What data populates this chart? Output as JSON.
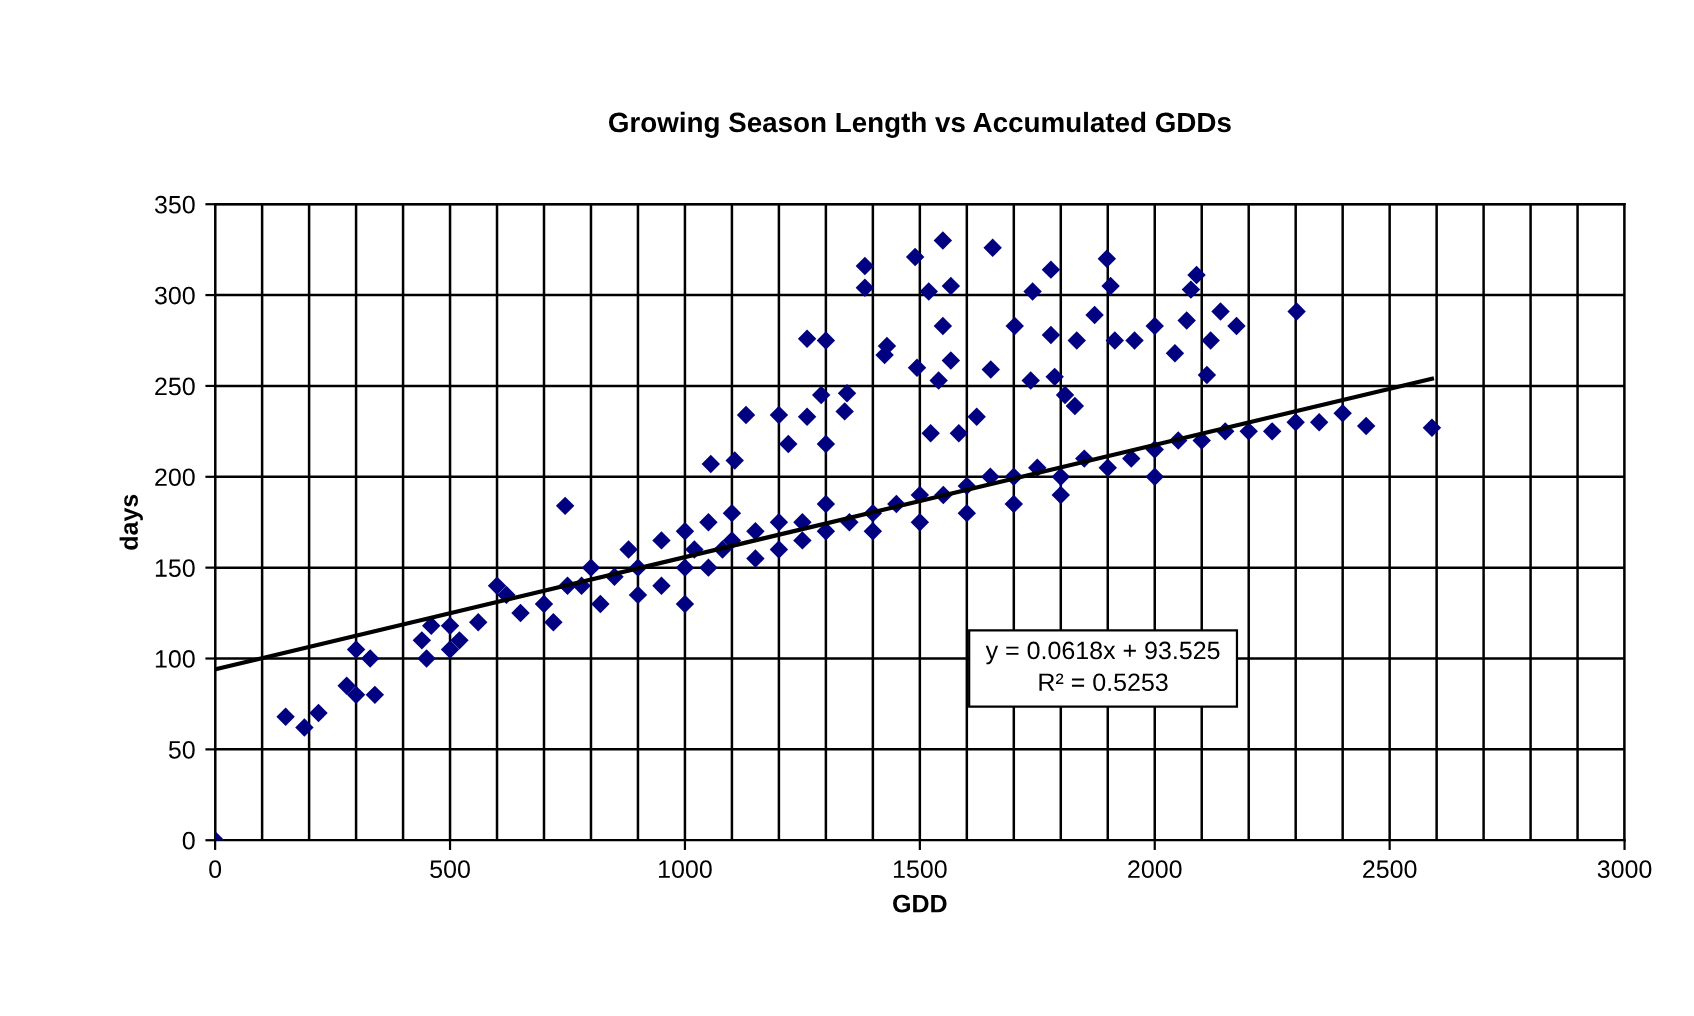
{
  "chart_data": {
    "type": "scatter",
    "title": "Growing Season Length vs Accumulated GDDs",
    "xlabel": "GDD",
    "ylabel": "days",
    "xlim": [
      0,
      3000
    ],
    "ylim": [
      0,
      350
    ],
    "xticks": [
      0,
      {
        "value": 100,
        "label": null
      },
      {
        "value": 200,
        "label": null
      },
      {
        "value": 300,
        "label": null
      },
      {
        "value": 400,
        "label": null
      },
      500,
      {
        "value": 600,
        "label": null
      },
      {
        "value": 700,
        "label": null
      },
      {
        "value": 800,
        "label": null
      },
      {
        "value": 900,
        "label": null
      },
      1000,
      {
        "value": 1100,
        "label": null
      },
      {
        "value": 1200,
        "label": null
      },
      {
        "value": 1300,
        "label": null
      },
      {
        "value": 1400,
        "label": null
      },
      1500,
      {
        "value": 1600,
        "label": null
      },
      {
        "value": 1700,
        "label": null
      },
      {
        "value": 1800,
        "label": null
      },
      {
        "value": 1900,
        "label": null
      },
      2000,
      {
        "value": 2100,
        "label": null
      },
      {
        "value": 2200,
        "label": null
      },
      {
        "value": 2300,
        "label": null
      },
      {
        "value": 2400,
        "label": null
      },
      2500,
      {
        "value": 2600,
        "label": null
      },
      {
        "value": 2700,
        "label": null
      },
      {
        "value": 2800,
        "label": null
      },
      {
        "value": 2900,
        "label": null
      },
      3000
    ],
    "yticks": [
      0,
      50,
      100,
      150,
      200,
      250,
      300,
      350
    ],
    "grid": true,
    "legend": false,
    "annotations": [
      "y = 0.0618x + 93.525",
      "R² = 0.5253"
    ],
    "series": [
      {
        "color": "#000080",
        "marker": "diamond",
        "x": [
          0,
          150,
          190,
          220,
          280,
          300,
          340,
          300,
          330,
          440,
          450,
          500,
          520,
          460,
          500,
          560,
          600,
          620,
          650,
          700,
          720,
          745,
          750,
          780,
          800,
          820,
          850,
          880,
          900,
          900,
          950,
          950,
          1000,
          1000,
          1000,
          1020,
          1050,
          1050,
          1080,
          1100,
          1100,
          1150,
          1150,
          1200,
          1200,
          1250,
          1250,
          1300,
          1300,
          1350,
          1400,
          1400,
          1450,
          1500,
          1500,
          1550,
          1600,
          1600,
          1650,
          1700,
          1700,
          1750,
          1800,
          1800,
          1850,
          1900,
          1950,
          2000,
          2000,
          2050,
          2100,
          2150,
          2200,
          2250,
          2300,
          2350,
          2400,
          2450,
          2590,
          1055,
          1106,
          1130,
          1200,
          1260,
          1220,
          1300,
          1290,
          1345,
          1340,
          1260,
          1300,
          1425,
          1430,
          1383,
          1383,
          1490,
          1549,
          1655,
          1519,
          1566,
          1779,
          1898,
          1906,
          2089,
          2077,
          2302,
          1740,
          1702,
          1549,
          1566,
          1494,
          1651,
          1540,
          1779,
          1834,
          1872,
          2000,
          1957,
          2043,
          2068,
          2140,
          2174,
          2119,
          2111,
          1915,
          1736,
          1787,
          1830,
          1809,
          1523,
          1621,
          1583
        ],
        "values": [
          0,
          68,
          62,
          70,
          85,
          80,
          80,
          105,
          100,
          110,
          100,
          105,
          110,
          118,
          118,
          120,
          140,
          135,
          125,
          130,
          120,
          184,
          140,
          140,
          150,
          130,
          145,
          160,
          150,
          135,
          140,
          165,
          150,
          130,
          170,
          160,
          175,
          150,
          160,
          180,
          165,
          170,
          155,
          175,
          160,
          175,
          165,
          185,
          170,
          175,
          180,
          170,
          185,
          190,
          175,
          190,
          195,
          180,
          200,
          200,
          185,
          205,
          200,
          190,
          210,
          205,
          210,
          215,
          200,
          220,
          220,
          225,
          225,
          225,
          230,
          230,
          235,
          228,
          227,
          207,
          209,
          234,
          234,
          233,
          218,
          218,
          245,
          246,
          236,
          276,
          275,
          267,
          272,
          316,
          304,
          321,
          330,
          326,
          302,
          305,
          314,
          320,
          305,
          311,
          303,
          291,
          302,
          283,
          283,
          264,
          260,
          259,
          253,
          278,
          275,
          289,
          283,
          275,
          268,
          286,
          291,
          283,
          275,
          256,
          275,
          253,
          255,
          239,
          245,
          224,
          233,
          224
        ]
      },
      {
        "type": "line",
        "color": "#000000",
        "marker": "none",
        "line_style": "solid",
        "x": [
          0,
          2590
        ],
        "values": [
          94,
          254
        ]
      }
    ]
  }
}
